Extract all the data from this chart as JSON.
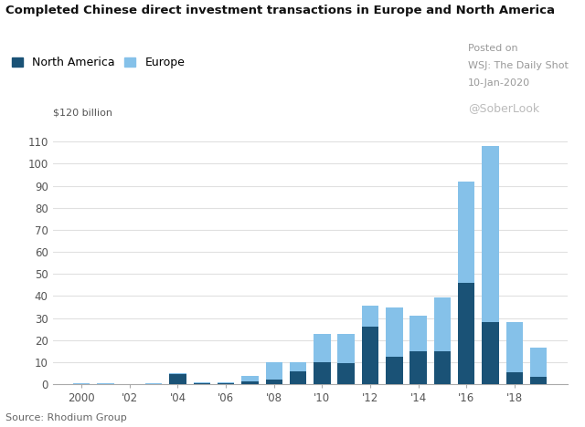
{
  "title": "Completed Chinese direct investment transactions in Europe and North America",
  "years": [
    2000,
    2001,
    2002,
    2003,
    2004,
    2005,
    2006,
    2007,
    2008,
    2009,
    2010,
    2011,
    2012,
    2013,
    2014,
    2015,
    2016,
    2017,
    2018,
    2019
  ],
  "north_america": [
    0.2,
    0.1,
    0.1,
    0.1,
    4.5,
    0.5,
    0.3,
    1.5,
    2.0,
    6.0,
    10.0,
    9.5,
    26.0,
    12.5,
    15.0,
    15.0,
    46.0,
    28.0,
    5.5,
    3.5
  ],
  "europe": [
    0.3,
    0.2,
    0.1,
    0.3,
    0.5,
    0.5,
    0.8,
    2.5,
    8.0,
    4.0,
    13.0,
    13.5,
    9.5,
    22.5,
    16.0,
    24.5,
    46.0,
    80.0,
    22.5,
    13.0
  ],
  "north_america_color": "#1a5276",
  "europe_color": "#85c1e9",
  "ylabel_text": "$120 billion",
  "yticks": [
    0,
    10,
    20,
    30,
    40,
    50,
    60,
    70,
    80,
    90,
    100,
    110
  ],
  "ylim": [
    0,
    120
  ],
  "source_text": "Source: Rhodium Group",
  "annotation_line1": "Posted on",
  "annotation_line2": "WSJ: The Daily Shot",
  "annotation_line3": "10-Jan-2020",
  "annotation_line4": "@SoberLook",
  "legend_labels": [
    "North America",
    "Europe"
  ],
  "plot_background": "#ffffff"
}
